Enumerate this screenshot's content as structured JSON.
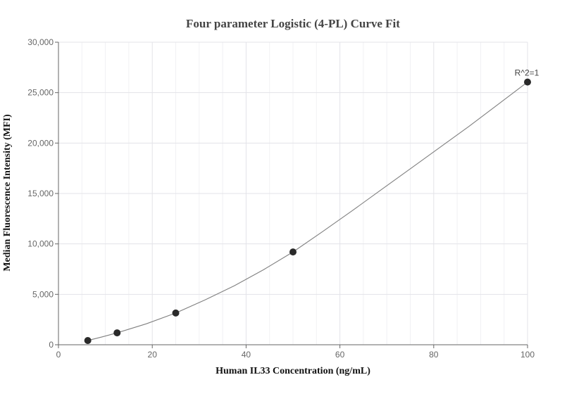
{
  "chart_data": {
    "type": "scatter",
    "title": "Four parameter Logistic (4-PL) Curve Fit",
    "xlabel": "Human IL33 Concentration (ng/mL)",
    "ylabel": "Median Fluorescence Intensity (MFI)",
    "xlim": [
      0,
      100
    ],
    "ylim": [
      0,
      30000
    ],
    "x_ticks": [
      0,
      20,
      40,
      60,
      80,
      100
    ],
    "x_tick_labels": [
      "0",
      "20",
      "40",
      "60",
      "80",
      "100"
    ],
    "y_ticks": [
      0,
      5000,
      10000,
      15000,
      20000,
      25000,
      30000
    ],
    "y_tick_labels": [
      "0",
      "5,000",
      "10,000",
      "15,000",
      "20,000",
      "25,000",
      "30,000"
    ],
    "grid": true,
    "series": [
      {
        "points": [
          {
            "x": 6.25,
            "y": 420
          },
          {
            "x": 12.5,
            "y": 1180
          },
          {
            "x": 25,
            "y": 3150
          },
          {
            "x": 50,
            "y": 9200
          },
          {
            "x": 100,
            "y": 26050
          }
        ]
      }
    ],
    "fit_curve": {
      "points": [
        {
          "x": 6.25,
          "y": 420
        },
        {
          "x": 9.4,
          "y": 790
        },
        {
          "x": 12.5,
          "y": 1180
        },
        {
          "x": 18.75,
          "y": 2080
        },
        {
          "x": 25,
          "y": 3150
        },
        {
          "x": 31.25,
          "y": 4450
        },
        {
          "x": 37.5,
          "y": 5850
        },
        {
          "x": 43.75,
          "y": 7450
        },
        {
          "x": 50,
          "y": 9200
        },
        {
          "x": 56.25,
          "y": 11200
        },
        {
          "x": 62.5,
          "y": 13250
        },
        {
          "x": 68.75,
          "y": 15350
        },
        {
          "x": 75,
          "y": 17450
        },
        {
          "x": 81.25,
          "y": 19550
        },
        {
          "x": 87.5,
          "y": 21650
        },
        {
          "x": 93.75,
          "y": 23850
        },
        {
          "x": 100,
          "y": 26050
        }
      ]
    },
    "annotation": {
      "text": "R^2=1",
      "x": 100,
      "y": 26050
    }
  }
}
